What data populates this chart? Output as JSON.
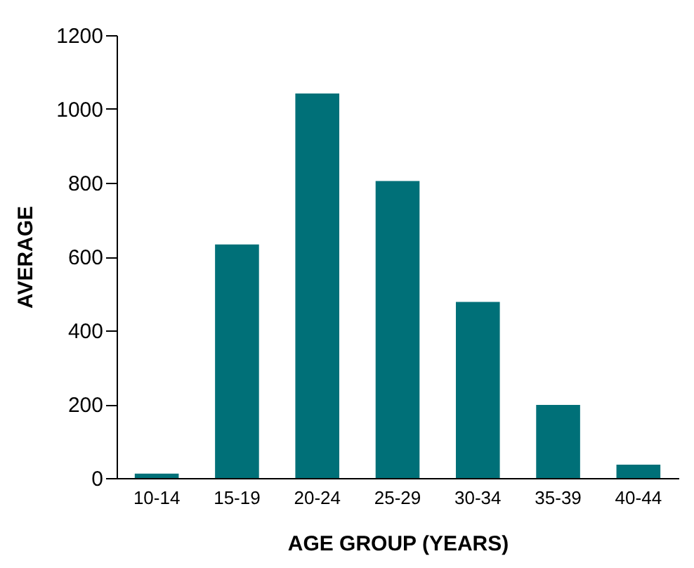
{
  "chart_data": {
    "type": "bar",
    "xlabel": "AGE GROUP (YEARS)",
    "ylabel": "AVERAGE",
    "categories": [
      "10-14",
      "15-19",
      "20-24",
      "25-29",
      "30-34",
      "35-39",
      "40-44"
    ],
    "values": [
      12,
      633,
      1042,
      805,
      477,
      198,
      36
    ],
    "color": "#007078",
    "ylim": [
      0,
      1200
    ],
    "yticks": [
      0,
      200,
      400,
      600,
      800,
      1000,
      1200
    ],
    "grid": false
  }
}
